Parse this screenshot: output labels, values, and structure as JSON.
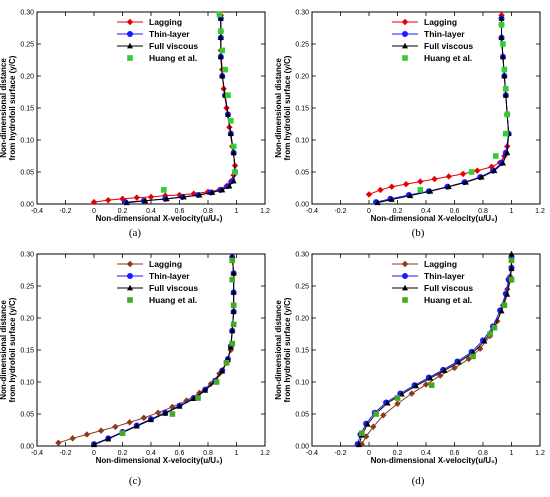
{
  "figure": {
    "panels_note": "",
    "captions": [
      "(a)",
      "(b)",
      "(c)",
      "(d)"
    ]
  },
  "colors": {
    "lagging_a": "#e60000",
    "lagging_c": "#8b3a1a",
    "thin_layer": "#1a1aff",
    "full_viscous": "#000000",
    "huang": "#33cc33",
    "huang_c": "#44aa22"
  },
  "chart_data": [
    {
      "type": "line",
      "panel": "(a)",
      "xlabel": "Non-dimensional X-velocity(u/U₀)",
      "ylabel": "Non-dimensional distance from hydrofoil surface (y/C)",
      "xlim": [
        -0.4,
        1.2
      ],
      "ylim": [
        0,
        0.3
      ],
      "xticks": [
        "-0.4",
        "-0.2",
        "0",
        "0.2",
        "0.4",
        "0.6",
        "0.8",
        "1",
        "1.2"
      ],
      "yticks": [
        "0.00",
        "0.05",
        "0.10",
        "0.15",
        "0.20",
        "0.25",
        "0.30"
      ],
      "legend": [
        "Lagging",
        "Thin-layer",
        "Full viscous",
        "Huang et al."
      ],
      "legend_position": "top-left",
      "series": [
        {
          "name": "Lagging",
          "marker": "diamond",
          "x": [
            0.0,
            0.1,
            0.2,
            0.3,
            0.4,
            0.5,
            0.6,
            0.7,
            0.8,
            0.88,
            0.93,
            0.96,
            0.98,
            0.99,
            0.97,
            0.95,
            0.93,
            0.91,
            0.9,
            0.89,
            0.89,
            0.89
          ],
          "y": [
            0.003,
            0.006,
            0.008,
            0.01,
            0.011,
            0.013,
            0.014,
            0.016,
            0.019,
            0.022,
            0.028,
            0.035,
            0.045,
            0.06,
            0.09,
            0.12,
            0.15,
            0.18,
            0.21,
            0.24,
            0.27,
            0.295
          ]
        },
        {
          "name": "Thin-layer",
          "marker": "circle",
          "x": [
            0.22,
            0.35,
            0.5,
            0.62,
            0.73,
            0.82,
            0.89,
            0.94,
            0.97,
            0.99,
            0.98,
            0.96,
            0.94,
            0.92,
            0.9,
            0.89,
            0.89,
            0.89
          ],
          "y": [
            0.003,
            0.005,
            0.008,
            0.011,
            0.014,
            0.018,
            0.022,
            0.028,
            0.036,
            0.05,
            0.08,
            0.11,
            0.14,
            0.17,
            0.2,
            0.23,
            0.26,
            0.29
          ]
        },
        {
          "name": "Full viscous",
          "marker": "triangle",
          "x": [
            0.23,
            0.36,
            0.51,
            0.63,
            0.74,
            0.83,
            0.9,
            0.95,
            0.98,
            0.99,
            0.98,
            0.96,
            0.94,
            0.92,
            0.9,
            0.89,
            0.89,
            0.89
          ],
          "y": [
            0.002,
            0.005,
            0.008,
            0.011,
            0.014,
            0.018,
            0.022,
            0.028,
            0.036,
            0.05,
            0.08,
            0.11,
            0.14,
            0.17,
            0.2,
            0.23,
            0.26,
            0.29
          ]
        },
        {
          "name": "Huang et al.",
          "marker": "square",
          "x": [
            0.49,
            0.99,
            0.98,
            0.96,
            0.94,
            0.92,
            0.9,
            0.89,
            0.88
          ],
          "y": [
            0.022,
            0.05,
            0.09,
            0.13,
            0.17,
            0.21,
            0.24,
            0.27,
            0.296
          ]
        }
      ]
    },
    {
      "type": "line",
      "panel": "(b)",
      "xlabel": "Non-dimensional X-velocity(u/U₀)",
      "ylabel": "Non-dimensional distance from hydrofoil surface (y/C)",
      "xlim": [
        -0.4,
        1.2
      ],
      "ylim": [
        0,
        0.3
      ],
      "xticks": [
        "-0.4",
        "-0.2",
        "0",
        "0.2",
        "0.4",
        "0.6",
        "0.8",
        "1",
        "1.2"
      ],
      "yticks": [
        "0.00",
        "0.05",
        "0.10",
        "0.15",
        "0.20",
        "0.25",
        "0.30"
      ],
      "legend": [
        "Lagging",
        "Thin-layer",
        "Full viscous",
        "Huang et al."
      ],
      "legend_position": "top-left",
      "series": [
        {
          "name": "Lagging",
          "marker": "diamond",
          "x": [
            0.0,
            0.08,
            0.16,
            0.26,
            0.36,
            0.46,
            0.56,
            0.66,
            0.76,
            0.86,
            0.92,
            0.95,
            0.97,
            0.98,
            0.97,
            0.96,
            0.95,
            0.94,
            0.93,
            0.93,
            0.93
          ],
          "y": [
            0.015,
            0.022,
            0.027,
            0.031,
            0.035,
            0.039,
            0.043,
            0.047,
            0.052,
            0.058,
            0.065,
            0.075,
            0.09,
            0.11,
            0.14,
            0.17,
            0.2,
            0.23,
            0.26,
            0.28,
            0.295
          ]
        },
        {
          "name": "Thin-layer",
          "marker": "circle",
          "x": [
            0.05,
            0.15,
            0.28,
            0.42,
            0.55,
            0.67,
            0.78,
            0.87,
            0.93,
            0.96,
            0.98,
            0.97,
            0.96,
            0.95,
            0.94,
            0.93,
            0.93
          ],
          "y": [
            0.003,
            0.008,
            0.014,
            0.02,
            0.027,
            0.034,
            0.042,
            0.052,
            0.064,
            0.08,
            0.11,
            0.14,
            0.17,
            0.2,
            0.23,
            0.26,
            0.29
          ]
        },
        {
          "name": "Full viscous",
          "marker": "triangle",
          "x": [
            0.06,
            0.16,
            0.29,
            0.43,
            0.56,
            0.68,
            0.79,
            0.88,
            0.94,
            0.97,
            0.98,
            0.97,
            0.96,
            0.95,
            0.94,
            0.93,
            0.93
          ],
          "y": [
            0.002,
            0.007,
            0.013,
            0.02,
            0.027,
            0.034,
            0.042,
            0.052,
            0.064,
            0.08,
            0.11,
            0.14,
            0.17,
            0.2,
            0.23,
            0.26,
            0.29
          ]
        },
        {
          "name": "Huang et al.",
          "marker": "square",
          "x": [
            0.36,
            0.72,
            0.89,
            0.96,
            0.97,
            0.96,
            0.95,
            0.94,
            0.93
          ],
          "y": [
            0.022,
            0.05,
            0.075,
            0.11,
            0.14,
            0.18,
            0.21,
            0.25,
            0.28
          ]
        }
      ]
    },
    {
      "type": "line",
      "panel": "(c)",
      "xlabel": "Non-dimensional X-velocity(u/U₀)",
      "ylabel": "Non-dimensional distance from hydrofoil surface (y/C)",
      "xlim": [
        -0.4,
        1.2
      ],
      "ylim": [
        0,
        0.3
      ],
      "xticks": [
        "-0.4",
        "-0.2",
        "0",
        "0.2",
        "0.4",
        "0.6",
        "0.8",
        "1",
        "1.2"
      ],
      "yticks": [
        "0.00",
        "0.05",
        "0.10",
        "0.15",
        "0.20",
        "0.25",
        "0.30"
      ],
      "legend": [
        "Lagging",
        "Thin-layer",
        "Full viscous",
        "Huang et al."
      ],
      "legend_position": "top-left",
      "series": [
        {
          "name": "Lagging",
          "marker": "diamond",
          "x": [
            -0.25,
            -0.15,
            -0.05,
            0.05,
            0.15,
            0.25,
            0.35,
            0.45,
            0.55,
            0.65,
            0.74,
            0.82,
            0.88,
            0.93,
            0.96,
            0.97,
            0.98,
            0.98,
            0.98,
            0.97
          ],
          "y": [
            0.005,
            0.012,
            0.018,
            0.024,
            0.03,
            0.037,
            0.044,
            0.052,
            0.061,
            0.071,
            0.083,
            0.097,
            0.113,
            0.13,
            0.15,
            0.18,
            0.21,
            0.24,
            0.27,
            0.295
          ]
        },
        {
          "name": "Thin-layer",
          "marker": "circle",
          "x": [
            0.0,
            0.1,
            0.2,
            0.3,
            0.4,
            0.5,
            0.6,
            0.7,
            0.78,
            0.85,
            0.9,
            0.94,
            0.96,
            0.97,
            0.98,
            0.98,
            0.98,
            0.97
          ],
          "y": [
            0.003,
            0.012,
            0.022,
            0.032,
            0.042,
            0.052,
            0.063,
            0.075,
            0.088,
            0.102,
            0.118,
            0.136,
            0.156,
            0.18,
            0.21,
            0.24,
            0.27,
            0.295
          ]
        },
        {
          "name": "Full viscous",
          "marker": "triangle",
          "x": [
            0.0,
            0.1,
            0.2,
            0.3,
            0.4,
            0.5,
            0.6,
            0.7,
            0.78,
            0.85,
            0.9,
            0.94,
            0.96,
            0.97,
            0.98,
            0.98,
            0.98,
            0.97
          ],
          "y": [
            0.002,
            0.011,
            0.021,
            0.031,
            0.041,
            0.051,
            0.062,
            0.074,
            0.087,
            0.101,
            0.117,
            0.135,
            0.155,
            0.18,
            0.21,
            0.24,
            0.27,
            0.295
          ]
        },
        {
          "name": "Huang et al.",
          "marker": "square",
          "x": [
            0.2,
            0.55,
            0.73,
            0.86,
            0.93,
            0.97,
            0.98,
            0.98,
            0.97,
            0.97
          ],
          "y": [
            0.02,
            0.05,
            0.075,
            0.1,
            0.13,
            0.16,
            0.19,
            0.22,
            0.26,
            0.29
          ]
        }
      ]
    },
    {
      "type": "line",
      "panel": "(d)",
      "xlabel": "Non-dimensional X-velocity(u/U₀)",
      "ylabel": "Non-dimensional distance from hydrofoil surface (y/C)",
      "xlim": [
        -0.4,
        1.2
      ],
      "ylim": [
        0,
        0.3
      ],
      "xticks": [
        "-0.4",
        "-0.2",
        "0",
        "0.2",
        "0.4",
        "0.6",
        "0.8",
        "1",
        "1.2"
      ],
      "yticks": [
        "0.00",
        "0.05",
        "0.10",
        "0.15",
        "0.20",
        "0.25",
        "0.30"
      ],
      "legend": [
        "Lagging",
        "Thin-layer",
        "Full viscous",
        "Huang et al."
      ],
      "legend_position": "top-left",
      "series": [
        {
          "name": "Lagging",
          "marker": "diamond",
          "x": [
            -0.05,
            -0.02,
            0.03,
            0.1,
            0.2,
            0.3,
            0.4,
            0.5,
            0.6,
            0.7,
            0.78,
            0.85,
            0.9,
            0.94,
            0.97,
            0.99,
            1.0,
            1.0
          ],
          "y": [
            0.003,
            0.015,
            0.03,
            0.048,
            0.066,
            0.082,
            0.096,
            0.11,
            0.122,
            0.136,
            0.152,
            0.172,
            0.195,
            0.22,
            0.245,
            0.265,
            0.28,
            0.295
          ]
        },
        {
          "name": "Thin-layer",
          "marker": "circle",
          "x": [
            -0.08,
            -0.06,
            -0.02,
            0.04,
            0.12,
            0.22,
            0.32,
            0.42,
            0.52,
            0.62,
            0.72,
            0.8,
            0.87,
            0.92,
            0.96,
            0.98,
            1.0,
            1.0
          ],
          "y": [
            0.003,
            0.018,
            0.035,
            0.052,
            0.068,
            0.082,
            0.095,
            0.107,
            0.119,
            0.132,
            0.147,
            0.165,
            0.187,
            0.212,
            0.238,
            0.26,
            0.278,
            0.295
          ]
        },
        {
          "name": "Full viscous",
          "marker": "triangle",
          "x": [
            -0.07,
            -0.05,
            -0.01,
            0.05,
            0.13,
            0.23,
            0.33,
            0.43,
            0.53,
            0.63,
            0.73,
            0.81,
            0.88,
            0.93,
            0.97,
            0.99,
            1.0,
            1.0
          ],
          "y": [
            0.002,
            0.017,
            0.034,
            0.051,
            0.067,
            0.081,
            0.094,
            0.106,
            0.118,
            0.131,
            0.146,
            0.164,
            0.186,
            0.211,
            0.237,
            0.259,
            0.277,
            0.3
          ]
        },
        {
          "name": "Huang et al.",
          "marker": "square",
          "x": [
            -0.05,
            0.05,
            0.2,
            0.44,
            0.73,
            0.85,
            0.88,
            0.95,
            1.0,
            1.0
          ],
          "y": [
            0.02,
            0.05,
            0.075,
            0.095,
            0.14,
            0.175,
            0.185,
            0.22,
            0.26,
            0.29
          ]
        }
      ]
    }
  ]
}
